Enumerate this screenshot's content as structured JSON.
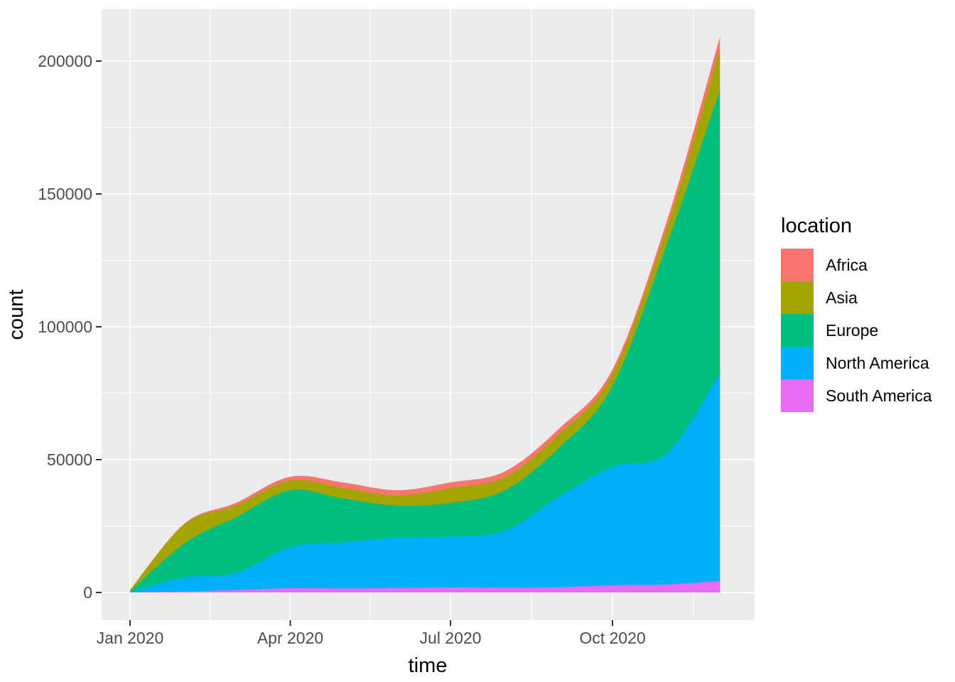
{
  "figure": {
    "background": "#FFFFFF"
  },
  "panel": {
    "background": "#EBEBEB",
    "grid_color": "#FFFFFF",
    "tick_mark_color": "#333333",
    "tick_label_color": "#4D4D4D",
    "axis_title_color": "#000000"
  },
  "chart_data": {
    "type": "area",
    "stacked": true,
    "title": "",
    "xlabel": "time",
    "ylabel": "count",
    "legend_title": "location",
    "legend_position": "right",
    "grid": "on",
    "x_dates": [
      "2020-01-01",
      "2020-02-01",
      "2020-03-01",
      "2020-04-01",
      "2020-05-01",
      "2020-06-01",
      "2020-07-01",
      "2020-08-01",
      "2020-09-01",
      "2020-10-01",
      "2020-11-01",
      "2020-12-01"
    ],
    "x_days": [
      0,
      31,
      60,
      91,
      121,
      152,
      182,
      213,
      244,
      274,
      305,
      335
    ],
    "xlim_days": [
      0,
      335
    ],
    "ylim": [
      0,
      210000
    ],
    "x_axis_ticks": [
      {
        "day": 0,
        "label": "Jan 2020"
      },
      {
        "day": 91,
        "label": "Apr 2020"
      },
      {
        "day": 182,
        "label": "Jul 2020"
      },
      {
        "day": 274,
        "label": "Oct 2020"
      }
    ],
    "y_axis_ticks": [
      {
        "value": 0,
        "label": "0"
      },
      {
        "value": 50000,
        "label": "50000"
      },
      {
        "value": 100000,
        "label": "100000"
      },
      {
        "value": 150000,
        "label": "150000"
      },
      {
        "value": 200000,
        "label": "200000"
      }
    ],
    "stack_order_bottom_to_top": [
      "South America",
      "North America",
      "Europe",
      "Asia",
      "Africa"
    ],
    "series": [
      {
        "name": "Africa",
        "color": "#F8766D",
        "values": [
          50,
          300,
          1000,
          1350,
          2000,
          2000,
          2150,
          2200,
          2000,
          1800,
          2700,
          4800
        ]
      },
      {
        "name": "Asia",
        "color": "#A3A500",
        "values": [
          500,
          7200,
          4400,
          3700,
          4000,
          3800,
          5600,
          4900,
          5200,
          4500,
          6200,
          15300
        ]
      },
      {
        "name": "Europe",
        "color": "#00BF7D",
        "values": [
          200,
          12800,
          21000,
          21400,
          16500,
          12000,
          12600,
          15200,
          18400,
          30400,
          78800,
          106400
        ]
      },
      {
        "name": "North America",
        "color": "#00B0F6",
        "values": [
          100,
          5300,
          6400,
          15500,
          17400,
          19000,
          19200,
          21500,
          34300,
          44600,
          49400,
          78300
        ]
      },
      {
        "name": "South America",
        "color": "#E76BF3",
        "values": [
          100,
          400,
          900,
          1600,
          1500,
          1700,
          1900,
          1800,
          2000,
          2700,
          3000,
          4300
        ]
      }
    ],
    "totals_by_month": [
      950,
      26000,
      33700,
      43550,
      41400,
      38500,
      41450,
      45600,
      61900,
      84000,
      140100,
      209100
    ]
  }
}
